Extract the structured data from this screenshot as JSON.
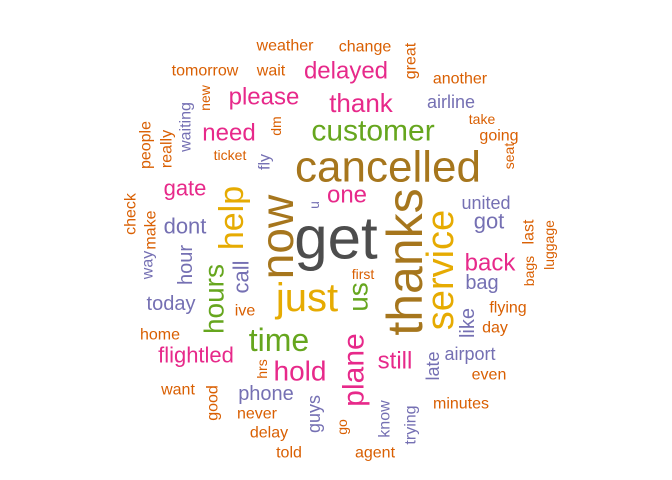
{
  "palette": {
    "gray": "#4d4d4d",
    "brown": "#a6761d",
    "green": "#66a61e",
    "yellow": "#e6ab02",
    "pink": "#e7298a",
    "purple": "#7570b3",
    "orange": "#d95f02"
  },
  "words": [
    {
      "id": "get",
      "text": "get",
      "color": "gray"
    },
    {
      "id": "thanks",
      "text": "thanks",
      "color": "brown"
    },
    {
      "id": "cancelled",
      "text": "cancelled",
      "color": "brown"
    },
    {
      "id": "now",
      "text": "now",
      "color": "brown"
    },
    {
      "id": "service",
      "text": "service",
      "color": "yellow"
    },
    {
      "id": "just",
      "text": "just",
      "color": "yellow"
    },
    {
      "id": "customer",
      "text": "customer",
      "color": "green"
    },
    {
      "id": "help",
      "text": "help",
      "color": "yellow"
    },
    {
      "id": "time",
      "text": "time",
      "color": "green"
    },
    {
      "id": "hours",
      "text": "hours",
      "color": "green"
    },
    {
      "id": "plane",
      "text": "plane",
      "color": "pink"
    },
    {
      "id": "hold",
      "text": "hold",
      "color": "pink"
    },
    {
      "id": "us",
      "text": "us",
      "color": "green"
    },
    {
      "id": "thank",
      "text": "thank",
      "color": "pink"
    },
    {
      "id": "delayed",
      "text": "delayed",
      "color": "pink"
    },
    {
      "id": "please",
      "text": "please",
      "color": "pink"
    },
    {
      "id": "need",
      "text": "need",
      "color": "pink"
    },
    {
      "id": "one",
      "text": "one",
      "color": "pink"
    },
    {
      "id": "back",
      "text": "back",
      "color": "pink"
    },
    {
      "id": "still",
      "text": "still",
      "color": "pink"
    },
    {
      "id": "flightled",
      "text": "flightled",
      "color": "pink"
    },
    {
      "id": "gate",
      "text": "gate",
      "color": "pink"
    },
    {
      "id": "dont",
      "text": "dont",
      "color": "purple"
    },
    {
      "id": "call",
      "text": "call",
      "color": "purple"
    },
    {
      "id": "got",
      "text": "got",
      "color": "purple"
    },
    {
      "id": "bag",
      "text": "bag",
      "color": "purple"
    },
    {
      "id": "like",
      "text": "like",
      "color": "purple"
    },
    {
      "id": "today",
      "text": "today",
      "color": "purple"
    },
    {
      "id": "hour",
      "text": "hour",
      "color": "purple"
    },
    {
      "id": "airline",
      "text": "airline",
      "color": "purple"
    },
    {
      "id": "united",
      "text": "united",
      "color": "purple"
    },
    {
      "id": "phone",
      "text": "phone",
      "color": "purple"
    },
    {
      "id": "airport",
      "text": "airport",
      "color": "purple"
    },
    {
      "id": "late",
      "text": "late",
      "color": "purple"
    },
    {
      "id": "guys",
      "text": "guys",
      "color": "purple"
    },
    {
      "id": "know",
      "text": "know",
      "color": "purple"
    },
    {
      "id": "trying",
      "text": "trying",
      "color": "purple"
    },
    {
      "id": "waiting",
      "text": "waiting",
      "color": "purple"
    },
    {
      "id": "fly",
      "text": "fly",
      "color": "purple"
    },
    {
      "id": "way",
      "text": "way",
      "color": "purple"
    },
    {
      "id": "u",
      "text": "u",
      "color": "purple"
    },
    {
      "id": "weather",
      "text": "weather",
      "color": "orange"
    },
    {
      "id": "change",
      "text": "change",
      "color": "orange"
    },
    {
      "id": "great",
      "text": "great",
      "color": "orange"
    },
    {
      "id": "tomorrow",
      "text": "tomorrow",
      "color": "orange"
    },
    {
      "id": "wait",
      "text": "wait",
      "color": "orange"
    },
    {
      "id": "another",
      "text": "another",
      "color": "orange"
    },
    {
      "id": "new",
      "text": "new",
      "color": "orange"
    },
    {
      "id": "take",
      "text": "take",
      "color": "orange"
    },
    {
      "id": "going",
      "text": "going",
      "color": "orange"
    },
    {
      "id": "people",
      "text": "people",
      "color": "orange"
    },
    {
      "id": "really",
      "text": "really",
      "color": "orange"
    },
    {
      "id": "dm",
      "text": "dm",
      "color": "orange"
    },
    {
      "id": "ticket",
      "text": "ticket",
      "color": "orange"
    },
    {
      "id": "seat",
      "text": "seat",
      "color": "orange"
    },
    {
      "id": "check",
      "text": "check",
      "color": "orange"
    },
    {
      "id": "make",
      "text": "make",
      "color": "orange"
    },
    {
      "id": "last",
      "text": "last",
      "color": "orange"
    },
    {
      "id": "bags",
      "text": "bags",
      "color": "orange"
    },
    {
      "id": "luggage",
      "text": "luggage",
      "color": "orange"
    },
    {
      "id": "first",
      "text": "first",
      "color": "orange"
    },
    {
      "id": "ive",
      "text": "ive",
      "color": "orange"
    },
    {
      "id": "flying",
      "text": "flying",
      "color": "orange"
    },
    {
      "id": "day",
      "text": "day",
      "color": "orange"
    },
    {
      "id": "home",
      "text": "home",
      "color": "orange"
    },
    {
      "id": "even",
      "text": "even",
      "color": "orange"
    },
    {
      "id": "hrs",
      "text": "hrs",
      "color": "orange"
    },
    {
      "id": "want",
      "text": "want",
      "color": "orange"
    },
    {
      "id": "good",
      "text": "good",
      "color": "orange"
    },
    {
      "id": "minutes",
      "text": "minutes",
      "color": "orange"
    },
    {
      "id": "never",
      "text": "never",
      "color": "orange"
    },
    {
      "id": "delay",
      "text": "delay",
      "color": "orange"
    },
    {
      "id": "go",
      "text": "go",
      "color": "orange"
    },
    {
      "id": "told",
      "text": "told",
      "color": "orange"
    },
    {
      "id": "agent",
      "text": "agent",
      "color": "orange"
    }
  ]
}
